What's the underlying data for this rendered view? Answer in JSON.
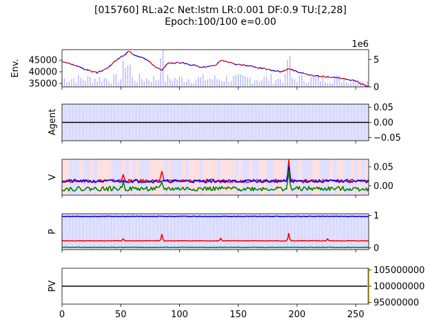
{
  "figure": {
    "title_line1": "[015760] RL:a2c Net:lstm LR:0.001 DF:0.9 TU:[2,28]",
    "title_line2": "Epoch:100/100 e=0.00"
  },
  "colors": {
    "price_up": "#ff0000",
    "price_down": "#0000ff",
    "volume": "#b3b3ff",
    "hold_band": "#e0e0ff",
    "v_bg_red": "#ffe0e0",
    "v_bg_blue": "#e0e0ff",
    "series_red": "#ff0000",
    "series_blue": "#0000ff",
    "series_green": "#008000",
    "black": "#000000",
    "pv_bar": "#e5d400"
  },
  "chart_data": [
    {
      "type": "line",
      "panel": "env",
      "ylabel": "Env.",
      "x_range": [
        0,
        261
      ],
      "y_ticks": [
        "35000",
        "40000",
        "45000"
      ],
      "ylim": [
        33500,
        49500
      ],
      "secondary_axis_label": "1e6",
      "secondary_ticks": [
        "0",
        "5"
      ],
      "secondary_ylim": [
        0,
        6.8
      ],
      "series": [
        {
          "name": "price",
          "keypoints_x": [
            0,
            10,
            20,
            30,
            40,
            47,
            53,
            57,
            60,
            70,
            80,
            85,
            90,
            100,
            110,
            120,
            130,
            135,
            140,
            150,
            160,
            170,
            180,
            185,
            190,
            193,
            200,
            210,
            220,
            230,
            240,
            250,
            261
          ],
          "keypoints_y": [
            44500,
            43000,
            41000,
            39500,
            42000,
            45500,
            47000,
            49000,
            47500,
            46000,
            42000,
            40500,
            43500,
            44000,
            43000,
            42000,
            42500,
            45000,
            44500,
            43000,
            42500,
            41500,
            40500,
            40000,
            40500,
            41500,
            40000,
            38500,
            38000,
            37500,
            37000,
            36000,
            33500
          ]
        }
      ],
      "volume_note": "volume bars on secondary axis (1e6)"
    },
    {
      "type": "line",
      "panel": "agent",
      "ylabel": "Agent",
      "y_ticks": [
        "0.05",
        "0.00",
        "−0.05"
      ],
      "ylim": [
        -0.06,
        0.06
      ],
      "series": [
        {
          "name": "action",
          "value": 0.0
        }
      ]
    },
    {
      "type": "line",
      "panel": "value",
      "ylabel": "V",
      "y_ticks": [
        "0.05",
        "0.00"
      ],
      "ylim": [
        -0.025,
        0.07
      ],
      "series": [
        {
          "name": "red",
          "base": 0.013,
          "spikes": [
            [
              52,
              0.03
            ],
            [
              85,
              0.038
            ],
            [
              193,
              0.068
            ]
          ]
        },
        {
          "name": "blue",
          "base": 0.012,
          "spikes": [
            [
              193,
              0.05
            ]
          ]
        },
        {
          "name": "green",
          "base": -0.008,
          "spikes": [
            [
              52,
              0.01
            ],
            [
              85,
              0.01
            ],
            [
              193,
              0.04
            ]
          ]
        }
      ]
    },
    {
      "type": "line",
      "panel": "policy",
      "ylabel": "P",
      "y_ticks": [
        "1",
        "0"
      ],
      "ylim": [
        -0.05,
        1.05
      ],
      "series": [
        {
          "name": "blue",
          "base": 0.97
        },
        {
          "name": "red",
          "base": 0.22,
          "spikes": [
            [
              52,
              0.28
            ],
            [
              85,
              0.42
            ],
            [
              135,
              0.3
            ],
            [
              193,
              0.45
            ],
            [
              226,
              0.28
            ]
          ]
        },
        {
          "name": "green",
          "base": 0.02
        }
      ]
    },
    {
      "type": "line",
      "panel": "pv",
      "ylabel": "PV",
      "y_ticks": [
        "105000000",
        "100000000",
        "95000000"
      ],
      "ylim": [
        94500000,
        105500000
      ],
      "x_ticks": [
        "0",
        "50",
        "100",
        "150",
        "200",
        "250"
      ],
      "series": [
        {
          "name": "portfolio_value",
          "value": 100000000
        }
      ]
    }
  ]
}
